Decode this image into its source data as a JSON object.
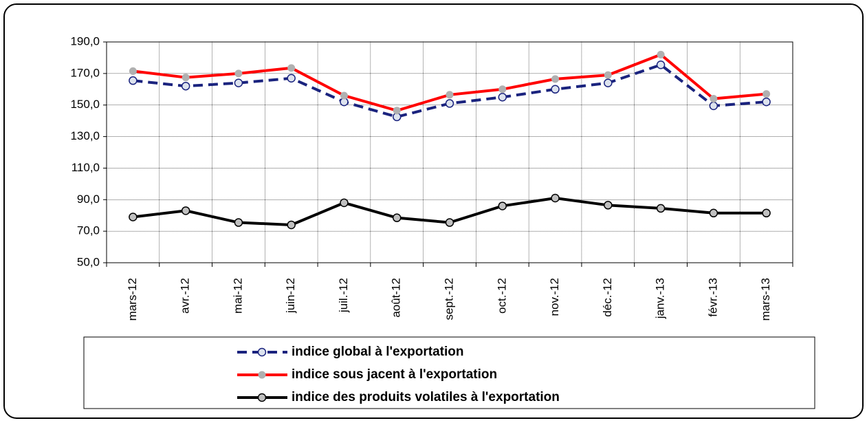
{
  "chart_data": {
    "type": "line",
    "categories": [
      "mars-12",
      "avr.-12",
      "mai-12",
      "juin-12",
      "juil.-12",
      "août-12",
      "sept.-12",
      "oct.-12",
      "nov.-12",
      "déc.-12",
      "janv.-13",
      "févr.-13",
      "mars-13"
    ],
    "ylim": [
      50,
      190
    ],
    "yticks": [
      {
        "value": 50,
        "label": "50,0"
      },
      {
        "value": 70,
        "label": "70,0"
      },
      {
        "value": 90,
        "label": "90,0"
      },
      {
        "value": 110,
        "label": "110,0"
      },
      {
        "value": 130,
        "label": "130,0"
      },
      {
        "value": 150,
        "label": "150,0"
      },
      {
        "value": 170,
        "label": "170,0"
      },
      {
        "value": 190,
        "label": "190,0"
      }
    ],
    "grid": true,
    "series": [
      {
        "name": "indice global à l'exportation",
        "color": "#1a237e",
        "line_style": "dashed",
        "marker_fill": "#dde3ee",
        "values": [
          165.5,
          162,
          164,
          167,
          152,
          142.5,
          151,
          155,
          160,
          164,
          175.5,
          149.5,
          152
        ]
      },
      {
        "name": "indice sous jacent à l'exportation",
        "color": "#ff0000",
        "line_style": "solid",
        "marker_fill": "#b0b0b0",
        "values": [
          171.5,
          167.5,
          170,
          173.5,
          156,
          146.5,
          156.5,
          160,
          166.5,
          169,
          182,
          154,
          157
        ]
      },
      {
        "name": "indice des produits volatiles à l'exportation",
        "color": "#000000",
        "line_style": "solid",
        "marker_fill": "#c0c0c0",
        "values": [
          79,
          83,
          75.5,
          74,
          88,
          78.5,
          75.5,
          86,
          91,
          86.5,
          84.5,
          81.5,
          81.5
        ]
      }
    ]
  }
}
